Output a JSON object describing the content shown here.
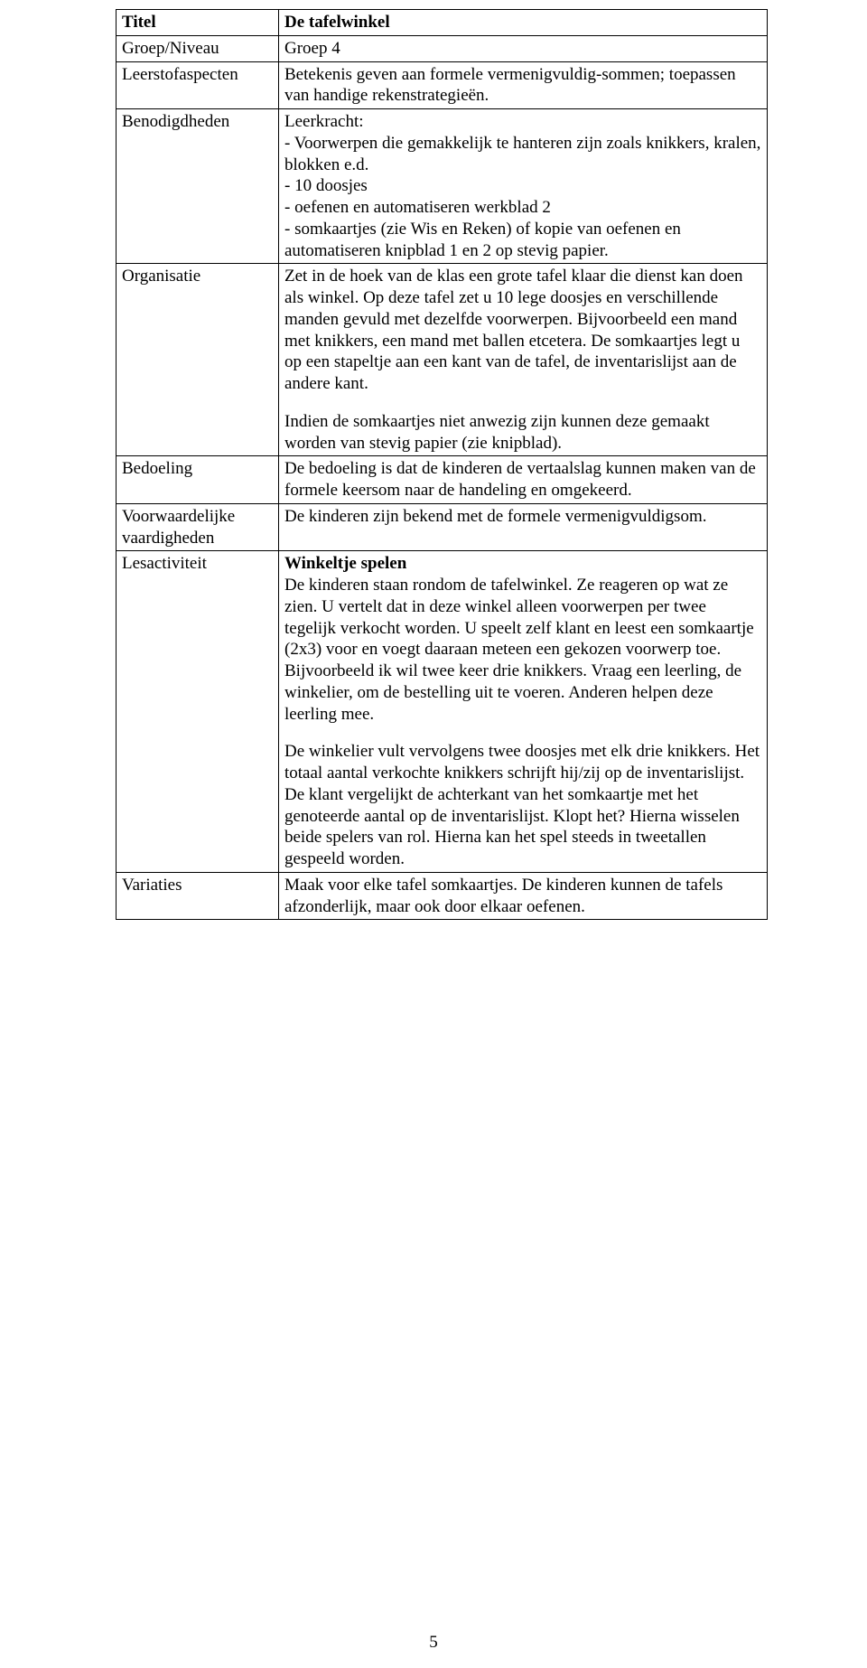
{
  "pageNumber": "5",
  "table": {
    "rows": [
      {
        "labelBold": true,
        "label": "Titel",
        "content": [
          {
            "text": "De tafelwinkel",
            "bold": true
          }
        ]
      },
      {
        "label": "Groep/Niveau",
        "content": [
          {
            "text": "Groep 4"
          }
        ]
      },
      {
        "label": "Leerstofaspecten",
        "content": [
          {
            "text": "Betekenis geven aan formele vermenigvuldig-sommen; toepassen van handige rekenstrategieën."
          }
        ]
      },
      {
        "label": "Benodigdheden",
        "content": [
          {
            "text": "Leerkracht:"
          },
          {
            "text": "- Voorwerpen die gemakkelijk te hanteren zijn zoals knikkers, kralen, blokken e.d."
          },
          {
            "text": "- 10 doosjes"
          },
          {
            "text": "- oefenen en automatiseren werkblad 2"
          },
          {
            "text": "- somkaartjes (zie Wis en Reken) of kopie van oefenen en automatiseren knipblad 1 en 2 op stevig papier."
          }
        ]
      },
      {
        "label": "Organisatie",
        "content": [
          {
            "text": "Zet in de hoek van de klas een grote tafel klaar die dienst kan doen als winkel. Op deze tafel zet u 10 lege doosjes en verschillende manden gevuld met dezelfde voorwerpen. Bijvoorbeeld een mand met knikkers, een mand met ballen etcetera. De somkaartjes legt u op een stapeltje aan een kant van de tafel, de inventarislijst aan de andere kant."
          },
          {
            "gap": true
          },
          {
            "text": "Indien de somkaartjes niet anwezig zijn kunnen deze gemaakt worden van stevig papier (zie knipblad)."
          }
        ]
      },
      {
        "label": "Bedoeling",
        "content": [
          {
            "text": "De bedoeling is dat de kinderen de vertaalslag kunnen maken van de formele keersom naar de handeling en omgekeerd."
          }
        ]
      },
      {
        "label": "Voorwaardelijke vaardigheden",
        "content": [
          {
            "text": "De kinderen zijn bekend met de formele vermenigvuldigsom."
          }
        ]
      },
      {
        "label": "Lesactiviteit",
        "content": [
          {
            "text": "Winkeltje spelen",
            "bold": true
          },
          {
            "text": "De kinderen staan rondom de tafelwinkel. Ze reageren op wat ze zien. U vertelt dat in deze winkel alleen voorwerpen per twee tegelijk verkocht worden. U speelt zelf klant en leest een somkaartje (2x3) voor en voegt daaraan meteen een gekozen voorwerp toe. Bijvoorbeeld ik wil twee keer drie knikkers. Vraag een leerling, de winkelier, om de bestelling uit te voeren. Anderen helpen deze leerling mee."
          },
          {
            "gap": true
          },
          {
            "text": "De winkelier vult vervolgens twee doosjes met elk drie knikkers. Het totaal aantal verkochte knikkers schrijft hij/zij op de inventarislijst. De klant vergelijkt de achterkant van het somkaartje met het genoteerde aantal op de inventarislijst. Klopt het? Hierna wisselen beide spelers van rol. Hierna kan het spel steeds in tweetallen gespeeld worden."
          }
        ]
      },
      {
        "label": "Variaties",
        "content": [
          {
            "text": "Maak voor elke tafel somkaartjes. De kinderen kunnen de tafels afzonderlijk, maar ook door elkaar oefenen."
          }
        ]
      }
    ]
  }
}
